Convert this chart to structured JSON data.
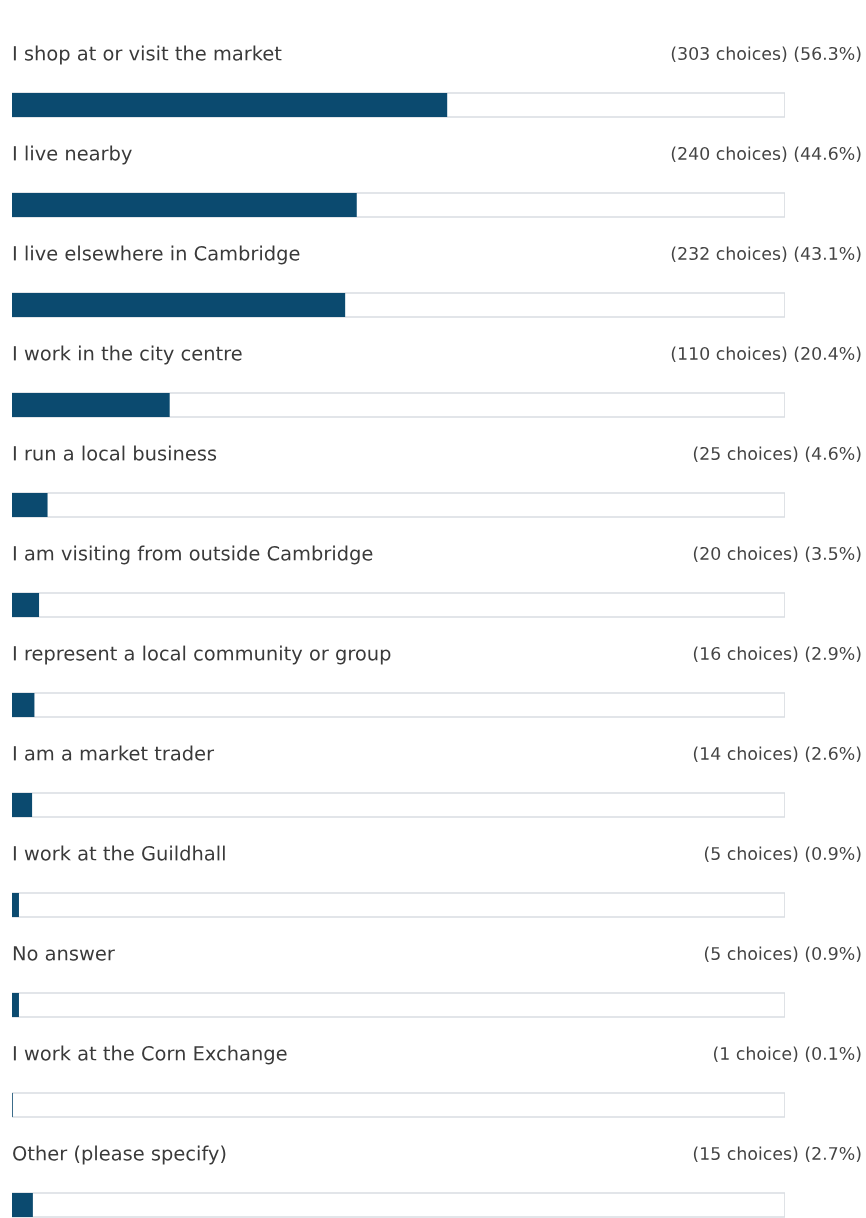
{
  "chart_data": {
    "type": "bar",
    "orientation": "horizontal",
    "tick_labels": false,
    "legend": false,
    "categories": [
      "I shop at or visit the market",
      "I live nearby",
      "I live elsewhere in Cambridge",
      "I work in the city centre",
      "I run a local business",
      "I am visiting from outside Cambridge",
      "I represent a local community or group",
      "I am a market trader",
      "I work at the Guildhall",
      "No answer",
      "I work at the Corn Exchange",
      "Other (please specify)"
    ],
    "values": [
      56.3,
      44.6,
      43.1,
      20.4,
      4.6,
      3.5,
      2.9,
      2.6,
      0.9,
      0.9,
      0.1,
      2.7
    ],
    "value_labels": [
      "(303 choices) (56.3%)",
      "(240 choices) (44.6%)",
      "(232 choices) (43.1%)",
      "(110 choices) (20.4%)",
      "(25 choices) (4.6%)",
      "(20 choices) (3.5%)",
      "(16 choices) (2.9%)",
      "(14 choices) (2.6%)",
      "(5 choices) (0.9%)",
      "(5 choices) (0.9%)",
      "(1 choice) (0.1%)",
      "(15 choices) (2.7%)"
    ],
    "color": "#0b4a6f",
    "xlim": [
      0,
      100
    ]
  }
}
